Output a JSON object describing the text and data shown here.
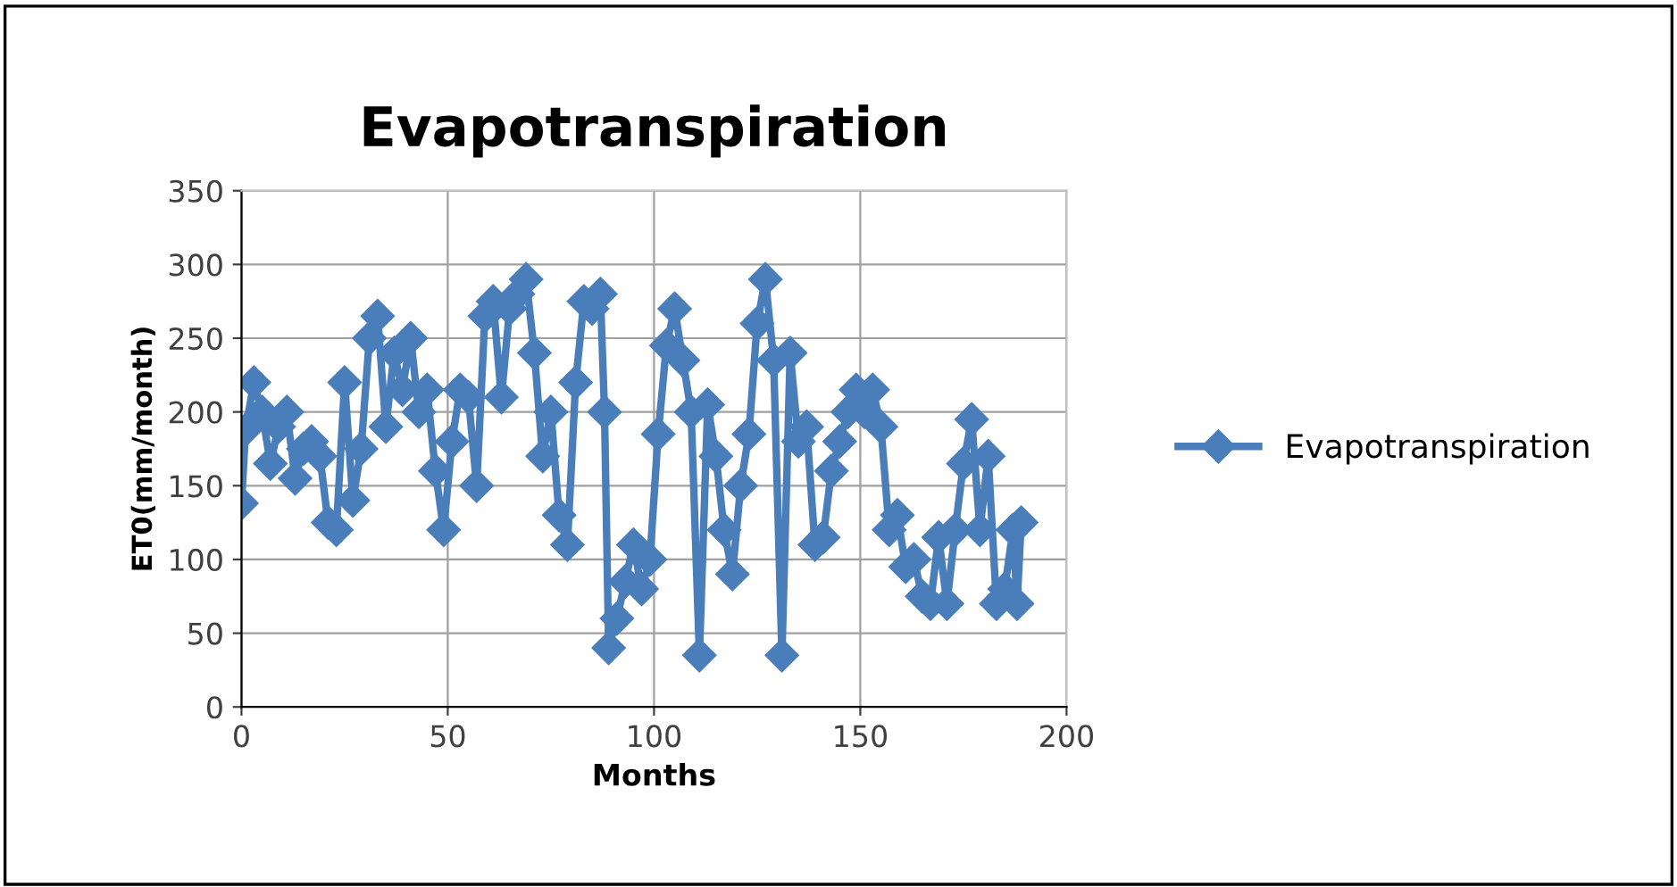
{
  "chart_data": {
    "type": "line",
    "title": "Evapotranspiration",
    "xlabel": "Months",
    "ylabel": "ET0(mm/month)",
    "x": [
      0,
      1,
      3,
      5,
      7,
      9,
      11,
      13,
      15,
      17,
      19,
      21,
      23,
      25,
      27,
      29,
      31,
      33,
      35,
      37,
      39,
      41,
      43,
      45,
      47,
      49,
      51,
      53,
      55,
      57,
      59,
      61,
      63,
      65,
      67,
      69,
      71,
      73,
      75,
      77,
      79,
      81,
      83,
      85,
      87,
      88,
      89,
      91,
      93,
      95,
      97,
      99,
      101,
      103,
      105,
      107,
      109,
      111,
      113,
      115,
      117,
      119,
      121,
      123,
      125,
      127,
      129,
      131,
      133,
      135,
      137,
      139,
      141,
      143,
      145,
      147,
      149,
      151,
      153,
      155,
      157,
      159,
      161,
      163,
      165,
      167,
      169,
      171,
      173,
      175,
      177,
      179,
      181,
      183,
      185,
      187,
      188,
      189
    ],
    "series": [
      {
        "name": "Evapotranspiration",
        "color": "#4a7ebb",
        "values": [
          138,
          188,
          220,
          200,
          165,
          190,
          200,
          155,
          175,
          180,
          170,
          125,
          120,
          220,
          140,
          175,
          250,
          265,
          190,
          240,
          215,
          250,
          200,
          215,
          160,
          120,
          180,
          215,
          210,
          150,
          265,
          275,
          210,
          270,
          280,
          290,
          240,
          170,
          200,
          130,
          110,
          220,
          275,
          270,
          280,
          200,
          40,
          60,
          85,
          110,
          80,
          100,
          185,
          245,
          270,
          235,
          200,
          35,
          205,
          170,
          120,
          90,
          150,
          185,
          260,
          290,
          235,
          35,
          240,
          180,
          190,
          110,
          115,
          160,
          180,
          200,
          215,
          200,
          215,
          190,
          120,
          130,
          95,
          100,
          75,
          70,
          115,
          70,
          120,
          165,
          195,
          120,
          170,
          70,
          80,
          120,
          70,
          125
        ]
      }
    ],
    "xlim": [
      0,
      200
    ],
    "xticks": [
      0,
      50,
      100,
      150,
      200
    ],
    "ylim": [
      0,
      350
    ],
    "yticks": [
      0,
      50,
      100,
      150,
      200,
      250,
      300,
      350
    ],
    "grid": true,
    "legend": "right",
    "marker": "diamond",
    "line_style": "solid"
  }
}
